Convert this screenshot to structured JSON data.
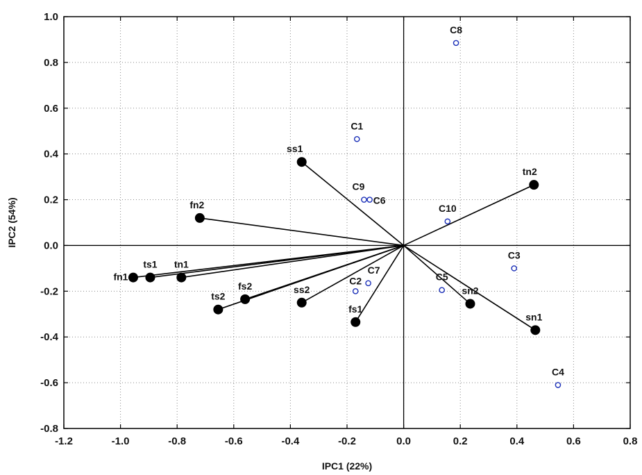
{
  "chart_data": {
    "type": "scatter",
    "title": "",
    "xlabel": "IPC1 (22%)",
    "ylabel": "IPC2 (54%)",
    "xlim": [
      -1.2,
      0.8
    ],
    "ylim": [
      -0.8,
      1.0
    ],
    "xticks": [
      "-1.2",
      "-1.0",
      "-0.8",
      "-0.6",
      "-0.4",
      "-0.2",
      "0.0",
      "0.2",
      "0.4",
      "0.6",
      "0.8"
    ],
    "yticks": [
      "1.0",
      "0.8",
      "0.6",
      "0.4",
      "0.2",
      "0.0",
      "-0.2",
      "-0.4",
      "-0.6",
      "-0.8"
    ],
    "grid": true,
    "vectors_from_origin": true,
    "series": [
      {
        "marker": "filled-circle",
        "points": [
          {
            "label": "ss1",
            "x": -0.36,
            "y": 0.365
          },
          {
            "label": "tn2",
            "x": 0.46,
            "y": 0.265
          },
          {
            "label": "fn2",
            "x": -0.72,
            "y": 0.12
          },
          {
            "label": "fn1",
            "x": -0.955,
            "y": -0.14
          },
          {
            "label": "ts1",
            "x": -0.895,
            "y": -0.14
          },
          {
            "label": "tn1",
            "x": -0.785,
            "y": -0.14
          },
          {
            "label": "ts2",
            "x": -0.655,
            "y": -0.28
          },
          {
            "label": "fs2",
            "x": -0.56,
            "y": -0.235
          },
          {
            "label": "ss2",
            "x": -0.36,
            "y": -0.25
          },
          {
            "label": "fs1",
            "x": -0.17,
            "y": -0.335
          },
          {
            "label": "sn2",
            "x": 0.235,
            "y": -0.255
          },
          {
            "label": "sn1",
            "x": 0.465,
            "y": -0.37
          }
        ]
      },
      {
        "marker": "open-circle",
        "points": [
          {
            "label": "C8",
            "x": 0.185,
            "y": 0.885
          },
          {
            "label": "C1",
            "x": -0.165,
            "y": 0.465
          },
          {
            "label": "C9",
            "x": -0.14,
            "y": 0.2
          },
          {
            "label": "C6",
            "x": -0.12,
            "y": 0.2
          },
          {
            "label": "C10",
            "x": 0.155,
            "y": 0.105
          },
          {
            "label": "C3",
            "x": 0.39,
            "y": -0.1
          },
          {
            "label": "C2",
            "x": -0.17,
            "y": -0.2
          },
          {
            "label": "C7",
            "x": -0.125,
            "y": -0.165
          },
          {
            "label": "C5",
            "x": 0.135,
            "y": -0.195
          },
          {
            "label": "C4",
            "x": 0.545,
            "y": -0.61
          }
        ]
      }
    ]
  }
}
